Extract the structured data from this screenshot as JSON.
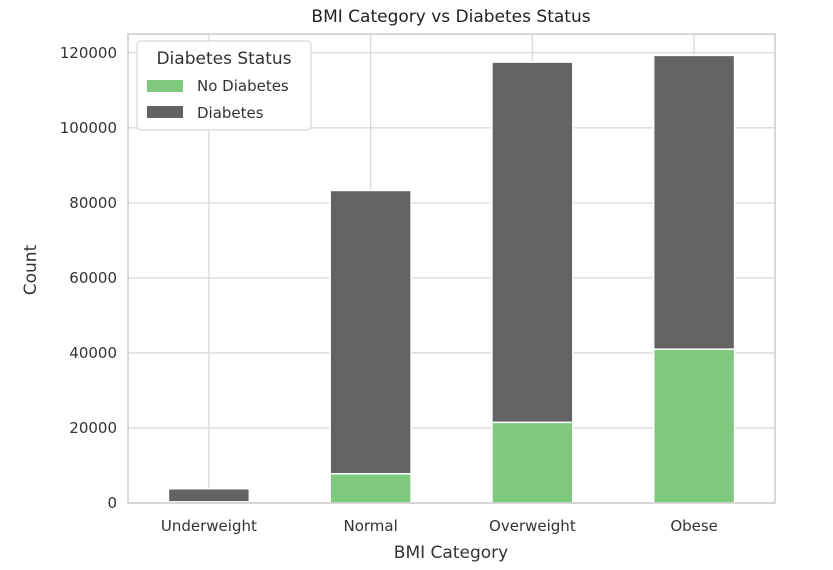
{
  "chart_data": {
    "type": "bar",
    "stacked": true,
    "title": "BMI Category vs Diabetes Status",
    "xlabel": "BMI Category",
    "ylabel": "Count",
    "categories": [
      "Underweight",
      "Normal",
      "Overweight",
      "Obese"
    ],
    "series": [
      {
        "name": "No Diabetes",
        "color": "#7fc97f",
        "values": [
          300,
          7800,
          21500,
          41000
        ]
      },
      {
        "name": "Diabetes",
        "color": "#636363",
        "values": [
          3500,
          75500,
          96000,
          78300
        ]
      }
    ],
    "ylim": [
      0,
      125000
    ],
    "yticks": [
      0,
      20000,
      40000,
      60000,
      80000,
      100000,
      120000
    ],
    "legend": {
      "title": "Diabetes Status",
      "placement": "top-left"
    },
    "grid": true
  }
}
